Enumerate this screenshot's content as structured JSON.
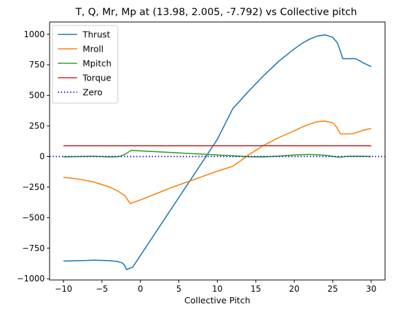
{
  "chart_data": {
    "type": "line",
    "title": "T, Q, Mr, Mp at (13.98, 2.005, -7.792) vs Collective pitch",
    "xlabel": "Collective Pitch",
    "ylabel": "",
    "xlim": [
      -11.8,
      31.8
    ],
    "ylim": [
      -1010,
      1100
    ],
    "xticks": [
      -10,
      -5,
      0,
      5,
      10,
      15,
      20,
      25,
      30
    ],
    "yticks": [
      -1000,
      -750,
      -500,
      -250,
      0,
      250,
      500,
      750,
      1000
    ],
    "grid": false,
    "legend_position": "top-left",
    "series": [
      {
        "name": "Thrust",
        "color": "#1f77b4",
        "style": "solid",
        "points": [
          [
            -10,
            -855
          ],
          [
            -8,
            -852
          ],
          [
            -6,
            -848
          ],
          [
            -4,
            -852
          ],
          [
            -3,
            -858
          ],
          [
            -2.3,
            -872
          ],
          [
            -2,
            -895
          ],
          [
            -1.8,
            -925
          ],
          [
            -1.5,
            -918
          ],
          [
            -1,
            -905
          ],
          [
            0,
            -810
          ],
          [
            2,
            -620
          ],
          [
            4,
            -430
          ],
          [
            6,
            -240
          ],
          [
            8,
            -50
          ],
          [
            10,
            140
          ],
          [
            12,
            390
          ],
          [
            14,
            530
          ],
          [
            16,
            660
          ],
          [
            18,
            780
          ],
          [
            20,
            880
          ],
          [
            21,
            925
          ],
          [
            22,
            960
          ],
          [
            23,
            985
          ],
          [
            24,
            995
          ],
          [
            25,
            975
          ],
          [
            25.6,
            930
          ],
          [
            26,
            860
          ],
          [
            26.3,
            800
          ],
          [
            28,
            800
          ],
          [
            29,
            765
          ],
          [
            30,
            735
          ]
        ]
      },
      {
        "name": "Mroll",
        "color": "#ff7f0e",
        "style": "solid",
        "points": [
          [
            -10,
            -170
          ],
          [
            -8,
            -185
          ],
          [
            -6,
            -210
          ],
          [
            -4,
            -250
          ],
          [
            -3,
            -280
          ],
          [
            -2,
            -320
          ],
          [
            -1.6,
            -360
          ],
          [
            -1.3,
            -385
          ],
          [
            0,
            -355
          ],
          [
            2,
            -305
          ],
          [
            4,
            -255
          ],
          [
            6,
            -210
          ],
          [
            8,
            -165
          ],
          [
            10,
            -120
          ],
          [
            12,
            -80
          ],
          [
            14,
            10
          ],
          [
            16,
            90
          ],
          [
            18,
            155
          ],
          [
            20,
            210
          ],
          [
            21,
            240
          ],
          [
            22,
            265
          ],
          [
            23,
            285
          ],
          [
            24,
            290
          ],
          [
            25,
            275
          ],
          [
            25.5,
            240
          ],
          [
            26,
            185
          ],
          [
            27,
            185
          ],
          [
            27.5,
            185
          ],
          [
            28,
            195
          ],
          [
            29,
            215
          ],
          [
            30,
            230
          ]
        ]
      },
      {
        "name": "Mpitch",
        "color": "#2ca02c",
        "style": "solid",
        "points": [
          [
            -10,
            -3
          ],
          [
            -8,
            0
          ],
          [
            -6,
            2
          ],
          [
            -4,
            -3
          ],
          [
            -3,
            -2
          ],
          [
            -2.5,
            5
          ],
          [
            -2,
            18
          ],
          [
            -1.5,
            38
          ],
          [
            -1.2,
            50
          ],
          [
            0,
            46
          ],
          [
            3,
            36
          ],
          [
            6,
            26
          ],
          [
            9,
            16
          ],
          [
            12,
            6
          ],
          [
            14,
            -2
          ],
          [
            16,
            -3
          ],
          [
            18,
            3
          ],
          [
            20,
            12
          ],
          [
            22,
            17
          ],
          [
            24,
            10
          ],
          [
            25.5,
            -3
          ],
          [
            26,
            -5
          ],
          [
            27,
            2
          ],
          [
            29,
            2
          ],
          [
            30,
            0
          ]
        ]
      },
      {
        "name": "Torque",
        "color": "#d62728",
        "style": "solid",
        "points": [
          [
            -10,
            88
          ],
          [
            30,
            88
          ]
        ]
      },
      {
        "name": "Zero",
        "color": "#0000cc",
        "style": "dotted",
        "points": [
          [
            -11.8,
            0
          ],
          [
            31.8,
            0
          ]
        ]
      }
    ]
  }
}
